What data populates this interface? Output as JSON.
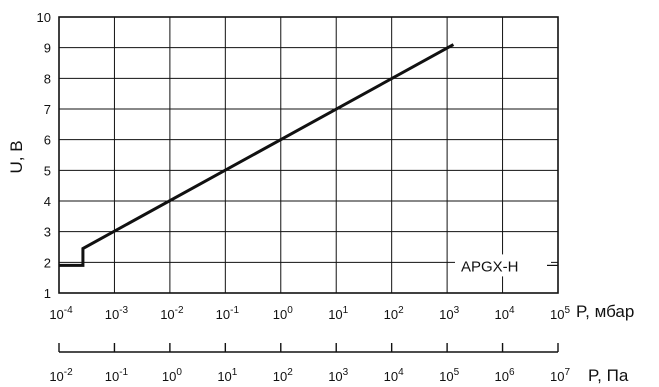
{
  "chart_data": {
    "type": "line",
    "xscale": "log",
    "xlabel": "P, мбар",
    "x2label": "P, Па",
    "ylabel": "U, В",
    "xlim": [
      0.0001,
      100000
    ],
    "x2lim": [
      0.01,
      10000000
    ],
    "ylim": [
      1,
      10
    ],
    "grid": true,
    "yticks": [
      "1",
      "2",
      "3",
      "4",
      "5",
      "6",
      "7",
      "8",
      "9",
      "10"
    ],
    "xticks": [
      {
        "base": "10",
        "exp": "-4"
      },
      {
        "base": "10",
        "exp": "-3"
      },
      {
        "base": "10",
        "exp": "-2"
      },
      {
        "base": "10",
        "exp": "-1"
      },
      {
        "base": "10",
        "exp": "0"
      },
      {
        "base": "10",
        "exp": "1"
      },
      {
        "base": "10",
        "exp": "2"
      },
      {
        "base": "10",
        "exp": "3"
      },
      {
        "base": "10",
        "exp": "4"
      },
      {
        "base": "10",
        "exp": "5"
      }
    ],
    "x2ticks": [
      {
        "base": "10",
        "exp": "-2"
      },
      {
        "base": "10",
        "exp": "-1"
      },
      {
        "base": "10",
        "exp": "0"
      },
      {
        "base": "10",
        "exp": "1"
      },
      {
        "base": "10",
        "exp": "2"
      },
      {
        "base": "10",
        "exp": "3"
      },
      {
        "base": "10",
        "exp": "4"
      },
      {
        "base": "10",
        "exp": "5"
      },
      {
        "base": "10",
        "exp": "6"
      },
      {
        "base": "10",
        "exp": "7"
      }
    ],
    "series": [
      {
        "name": "APGX-H",
        "color": "#111111",
        "points": [
          {
            "x": 0.0001,
            "y": 1.9
          },
          {
            "x": 0.00027,
            "y": 1.9
          },
          {
            "x": 0.00027,
            "y": 2.45
          },
          {
            "x": 1300,
            "y": 9.1
          }
        ]
      }
    ],
    "legend": "bottom-right"
  }
}
